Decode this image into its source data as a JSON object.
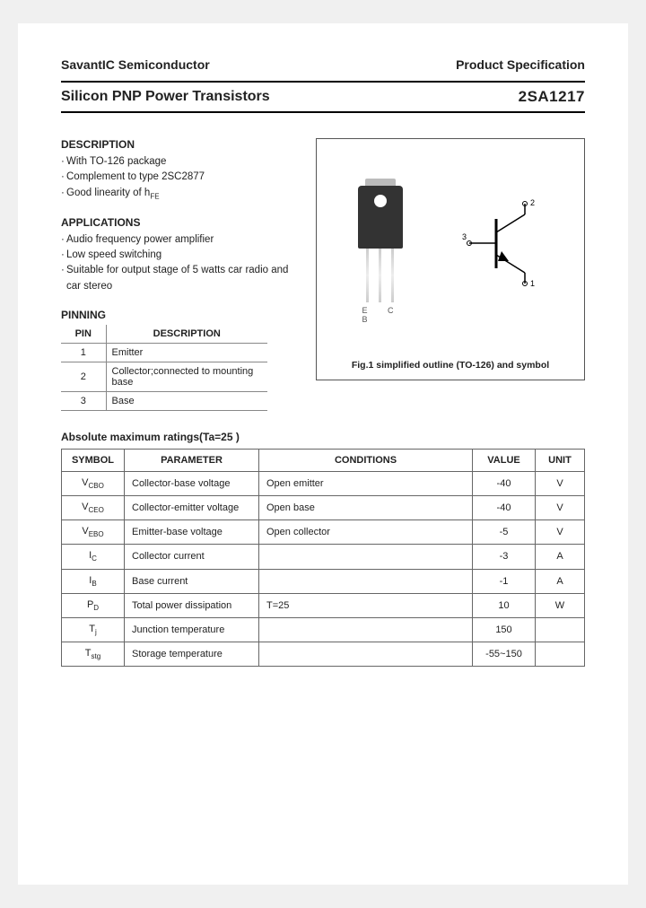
{
  "header": {
    "company": "SavantIC Semiconductor",
    "docType": "Product Specification"
  },
  "title": {
    "left": "Silicon PNP Power Transistors",
    "right": "2SA1217"
  },
  "description": {
    "heading": "DESCRIPTION",
    "items": [
      "With TO-126 package",
      "Complement to type 2SC2877",
      "Good linearity of h"
    ]
  },
  "applications": {
    "heading": "APPLICATIONS",
    "items": [
      "Audio frequency power amplifier",
      "Low speed switching",
      "Suitable for output stage of 5 watts car radio and car stereo"
    ]
  },
  "pinning": {
    "heading": "PINNING",
    "col1": "PIN",
    "col2": "DESCRIPTION",
    "rows": [
      {
        "pin": "1",
        "desc": "Emitter"
      },
      {
        "pin": "2",
        "desc": "Collector;connected to mounting base"
      },
      {
        "pin": "3",
        "desc": "Base"
      }
    ]
  },
  "figure": {
    "pinLabels": "E C B",
    "caption": "Fig.1 simplified outline (TO-126) and symbol",
    "symbolLabels": {
      "t1": "1",
      "t2": "2",
      "t3": "3"
    }
  },
  "ratings": {
    "heading": "Absolute maximum ratings(Ta=25 )",
    "cols": [
      "SYMBOL",
      "PARAMETER",
      "CONDITIONS",
      "VALUE",
      "UNIT"
    ],
    "rows": [
      {
        "sym": "V",
        "sub": "CBO",
        "param": "Collector-base voltage",
        "cond": "Open emitter",
        "val": "-40",
        "unit": "V"
      },
      {
        "sym": "V",
        "sub": "CEO",
        "param": "Collector-emitter voltage",
        "cond": "Open base",
        "val": "-40",
        "unit": "V"
      },
      {
        "sym": "V",
        "sub": "EBO",
        "param": "Emitter-base voltage",
        "cond": "Open collector",
        "val": "-5",
        "unit": "V"
      },
      {
        "sym": "I",
        "sub": "C",
        "param": "Collector current",
        "cond": "",
        "val": "-3",
        "unit": "A"
      },
      {
        "sym": "I",
        "sub": "B",
        "param": "Base current",
        "cond": "",
        "val": "-1",
        "unit": "A"
      },
      {
        "sym": "P",
        "sub": "D",
        "param": "Total power dissipation",
        "cond": "T=25",
        "val": "10",
        "unit": "W"
      },
      {
        "sym": "T",
        "sub": "j",
        "param": "Junction temperature",
        "cond": "",
        "val": "150",
        "unit": ""
      },
      {
        "sym": "T",
        "sub": "stg",
        "param": "Storage temperature",
        "cond": "",
        "val": "-55~150",
        "unit": ""
      }
    ]
  },
  "colors": {
    "text": "#222222",
    "border": "#666666",
    "pkgBody": "#333333"
  }
}
